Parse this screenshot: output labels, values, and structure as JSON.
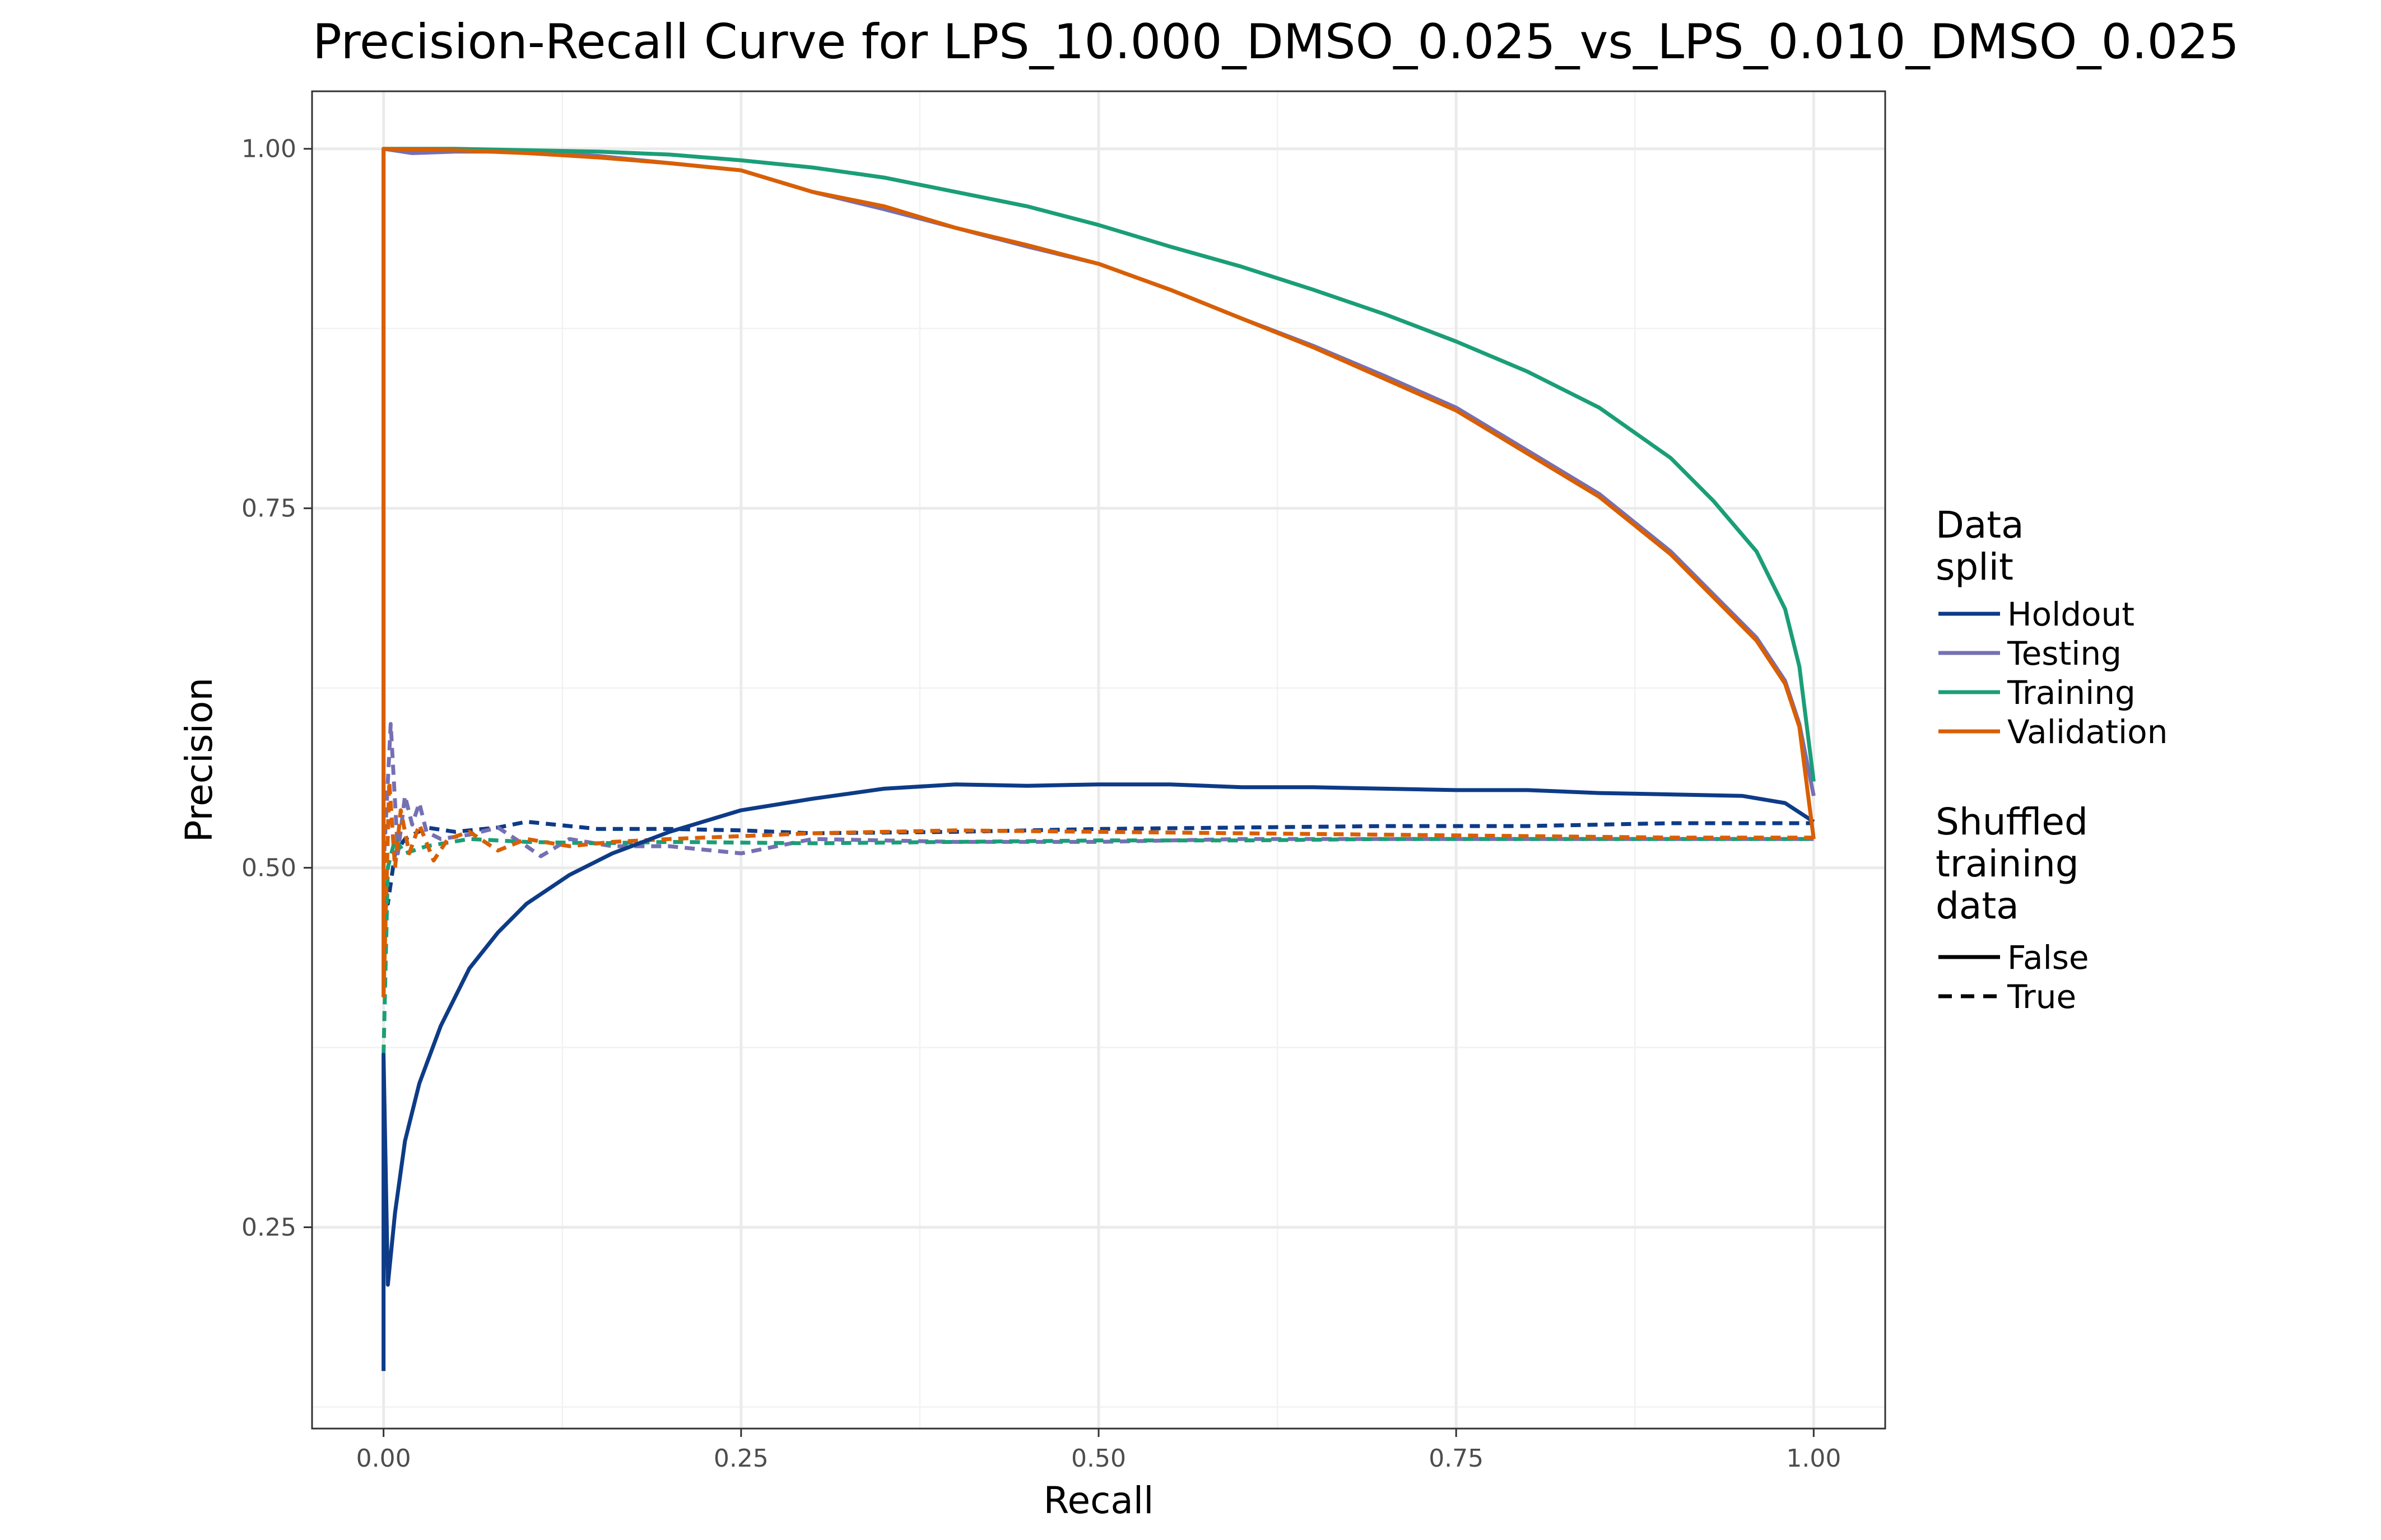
{
  "chart_data": {
    "type": "line",
    "title": "Precision-Recall Curve for LPS_10.000_DMSO_0.025_vs_LPS_0.010_DMSO_0.025",
    "xlabel": "Recall",
    "ylabel": "Precision",
    "xlim": [
      -0.05,
      1.05
    ],
    "ylim": [
      0.11,
      1.04
    ],
    "x_ticks": [
      0.0,
      0.25,
      0.5,
      0.75,
      1.0
    ],
    "x_tick_labels": [
      "0.00",
      "0.25",
      "0.50",
      "0.75",
      "1.00"
    ],
    "y_ticks": [
      0.25,
      0.5,
      0.75,
      1.0
    ],
    "y_tick_labels": [
      "0.25",
      "0.50",
      "0.75",
      "1.00"
    ],
    "grid": true,
    "legend_position": "right",
    "legend": {
      "color_title": "Data\nsplit",
      "color_entries": [
        {
          "label": "Holdout",
          "color": "#0d3b87"
        },
        {
          "label": "Testing",
          "color": "#7570b3"
        },
        {
          "label": "Training",
          "color": "#1b9e77"
        },
        {
          "label": "Validation",
          "color": "#d95f02"
        }
      ],
      "linetype_title": "Shuffled\ntraining\ndata",
      "linetype_entries": [
        {
          "label": "False",
          "linetype": "solid"
        },
        {
          "label": "True",
          "linetype": "dashed"
        }
      ]
    },
    "series": [
      {
        "split": "Holdout",
        "shuffled": "False",
        "color": "#0d3b87",
        "dash": false,
        "x": [
          0.0,
          0.0,
          0.003,
          0.008,
          0.015,
          0.025,
          0.04,
          0.06,
          0.08,
          0.1,
          0.13,
          0.16,
          0.2,
          0.25,
          0.3,
          0.35,
          0.4,
          0.45,
          0.5,
          0.55,
          0.6,
          0.65,
          0.7,
          0.75,
          0.8,
          0.85,
          0.9,
          0.95,
          0.98,
          1.0
        ],
        "y": [
          0.15,
          0.37,
          0.21,
          0.26,
          0.31,
          0.35,
          0.39,
          0.43,
          0.455,
          0.475,
          0.495,
          0.51,
          0.525,
          0.54,
          0.548,
          0.555,
          0.558,
          0.557,
          0.558,
          0.558,
          0.556,
          0.556,
          0.555,
          0.554,
          0.554,
          0.552,
          0.551,
          0.55,
          0.545,
          0.532
        ]
      },
      {
        "split": "Testing",
        "shuffled": "False",
        "color": "#7570b3",
        "dash": false,
        "x": [
          0.0,
          0.0,
          0.02,
          0.05,
          0.1,
          0.15,
          0.2,
          0.25,
          0.3,
          0.35,
          0.4,
          0.45,
          0.5,
          0.55,
          0.6,
          0.65,
          0.7,
          0.75,
          0.8,
          0.85,
          0.9,
          0.93,
          0.96,
          0.98,
          0.99,
          1.0
        ],
        "y": [
          0.52,
          1.0,
          0.997,
          0.998,
          0.998,
          0.995,
          0.99,
          0.985,
          0.97,
          0.958,
          0.945,
          0.932,
          0.92,
          0.902,
          0.882,
          0.863,
          0.842,
          0.82,
          0.79,
          0.76,
          0.72,
          0.69,
          0.66,
          0.63,
          0.6,
          0.55
        ]
      },
      {
        "split": "Training",
        "shuffled": "False",
        "color": "#1b9e77",
        "dash": false,
        "x": [
          0.0,
          0.0,
          0.05,
          0.1,
          0.15,
          0.2,
          0.25,
          0.3,
          0.35,
          0.4,
          0.45,
          0.5,
          0.55,
          0.6,
          0.65,
          0.7,
          0.75,
          0.8,
          0.85,
          0.9,
          0.93,
          0.96,
          0.98,
          0.99,
          1.0
        ],
        "y": [
          0.52,
          1.0,
          1.0,
          0.999,
          0.998,
          0.996,
          0.992,
          0.987,
          0.98,
          0.97,
          0.96,
          0.947,
          0.932,
          0.918,
          0.902,
          0.885,
          0.866,
          0.845,
          0.82,
          0.785,
          0.755,
          0.72,
          0.68,
          0.64,
          0.56
        ]
      },
      {
        "split": "Validation",
        "shuffled": "False",
        "color": "#d95f02",
        "dash": false,
        "x": [
          0.0,
          0.0,
          0.05,
          0.1,
          0.15,
          0.2,
          0.25,
          0.3,
          0.35,
          0.4,
          0.45,
          0.5,
          0.55,
          0.6,
          0.65,
          0.7,
          0.75,
          0.8,
          0.85,
          0.9,
          0.93,
          0.96,
          0.98,
          0.99,
          1.0
        ],
        "y": [
          0.41,
          1.0,
          0.999,
          0.997,
          0.994,
          0.99,
          0.985,
          0.97,
          0.96,
          0.945,
          0.933,
          0.92,
          0.902,
          0.882,
          0.862,
          0.84,
          0.818,
          0.788,
          0.758,
          0.718,
          0.688,
          0.658,
          0.628,
          0.598,
          0.52
        ]
      },
      {
        "split": "Holdout",
        "shuffled": "True",
        "color": "#0d3b87",
        "dash": true,
        "x": [
          0.0,
          0.003,
          0.008,
          0.015,
          0.03,
          0.05,
          0.08,
          0.1,
          0.15,
          0.2,
          0.25,
          0.3,
          0.4,
          0.5,
          0.6,
          0.7,
          0.8,
          0.9,
          1.0
        ],
        "y": [
          0.49,
          0.475,
          0.51,
          0.52,
          0.528,
          0.525,
          0.528,
          0.532,
          0.527,
          0.527,
          0.526,
          0.524,
          0.525,
          0.527,
          0.528,
          0.529,
          0.529,
          0.531,
          0.531
        ]
      },
      {
        "split": "Testing",
        "shuffled": "True",
        "color": "#7570b3",
        "dash": true,
        "x": [
          0.0,
          0.005,
          0.01,
          0.015,
          0.02,
          0.025,
          0.03,
          0.04,
          0.06,
          0.08,
          0.1,
          0.11,
          0.13,
          0.16,
          0.2,
          0.25,
          0.3,
          0.4,
          0.5,
          0.6,
          0.7,
          0.8,
          0.9,
          1.0
        ],
        "y": [
          0.5,
          0.6,
          0.51,
          0.55,
          0.53,
          0.545,
          0.525,
          0.52,
          0.523,
          0.528,
          0.515,
          0.508,
          0.52,
          0.515,
          0.515,
          0.51,
          0.52,
          0.518,
          0.518,
          0.52,
          0.52,
          0.52,
          0.52,
          0.52
        ]
      },
      {
        "split": "Training",
        "shuffled": "True",
        "color": "#1b9e77",
        "dash": true,
        "x": [
          0.0,
          0.003,
          0.008,
          0.015,
          0.03,
          0.06,
          0.1,
          0.15,
          0.2,
          0.3,
          0.4,
          0.5,
          0.6,
          0.7,
          0.8,
          0.9,
          1.0
        ],
        "y": [
          0.37,
          0.5,
          0.52,
          0.51,
          0.515,
          0.52,
          0.518,
          0.517,
          0.518,
          0.517,
          0.518,
          0.519,
          0.519,
          0.52,
          0.52,
          0.52,
          0.52
        ]
      },
      {
        "split": "Validation",
        "shuffled": "True",
        "color": "#d95f02",
        "dash": true,
        "x": [
          0.0,
          0.004,
          0.008,
          0.012,
          0.018,
          0.025,
          0.035,
          0.045,
          0.06,
          0.08,
          0.1,
          0.13,
          0.16,
          0.2,
          0.25,
          0.3,
          0.4,
          0.5,
          0.6,
          0.7,
          0.8,
          0.9,
          1.0
        ],
        "y": [
          0.41,
          0.56,
          0.5,
          0.54,
          0.51,
          0.53,
          0.505,
          0.52,
          0.525,
          0.512,
          0.52,
          0.515,
          0.518,
          0.52,
          0.522,
          0.524,
          0.526,
          0.525,
          0.524,
          0.523,
          0.522,
          0.521,
          0.521
        ]
      }
    ]
  }
}
